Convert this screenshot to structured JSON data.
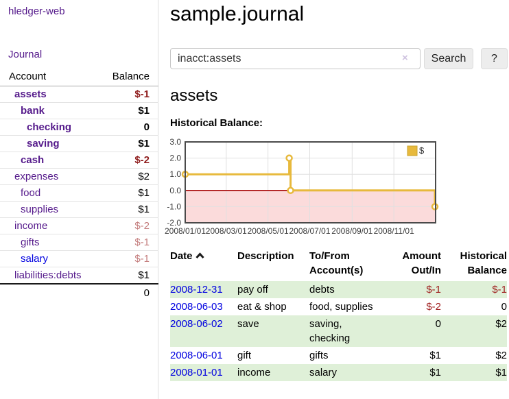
{
  "app": {
    "brand": "hledger-web",
    "nav_journal": "Journal"
  },
  "sidebar": {
    "col_account": "Account",
    "col_balance": "Balance",
    "accounts": [
      {
        "name": "assets",
        "depth": 0,
        "bold": true,
        "color": "purple",
        "balance": "$-1"
      },
      {
        "name": "bank",
        "depth": 1,
        "bold": true,
        "color": "purple",
        "balance": "$1"
      },
      {
        "name": "checking",
        "depth": 2,
        "bold": true,
        "color": "purple",
        "balance": "0"
      },
      {
        "name": "saving",
        "depth": 2,
        "bold": true,
        "color": "purple",
        "balance": "$1"
      },
      {
        "name": "cash",
        "depth": 1,
        "bold": true,
        "color": "purple",
        "balance": "$-2"
      },
      {
        "name": "expenses",
        "depth": 0,
        "bold": false,
        "color": "purple",
        "balance": "$2"
      },
      {
        "name": "food",
        "depth": 1,
        "bold": false,
        "color": "purple",
        "balance": "$1"
      },
      {
        "name": "supplies",
        "depth": 1,
        "bold": false,
        "color": "purple",
        "balance": "$1"
      },
      {
        "name": "income",
        "depth": 0,
        "bold": false,
        "color": "purple",
        "balance": "$-2"
      },
      {
        "name": "gifts",
        "depth": 1,
        "bold": false,
        "color": "purple",
        "balance": "$-1"
      },
      {
        "name": "salary",
        "depth": 1,
        "bold": false,
        "color": "blue",
        "balance": "$-1"
      },
      {
        "name": "liabilities:debts",
        "depth": 0,
        "bold": false,
        "color": "purple",
        "balance": "$1"
      }
    ],
    "total": "0"
  },
  "main": {
    "title": "sample.journal",
    "search": {
      "value": "inacct:assets",
      "clear_icon": "×",
      "search_button": "Search",
      "help_button": "?"
    },
    "account_heading": "assets",
    "chart_label": "Historical Balance:"
  },
  "chart_data": {
    "type": "line",
    "step": true,
    "title": "Historical Balance",
    "x_range": [
      "2008-01-01",
      "2009-01-01"
    ],
    "y_range": [
      -2,
      3
    ],
    "x_ticks": [
      {
        "v": "2008-01-01",
        "label": "2008/01/01"
      },
      {
        "v": "2008-03-01",
        "label": "2008/03/01"
      },
      {
        "v": "2008-05-01",
        "label": "2008/05/01"
      },
      {
        "v": "2008-07-01",
        "label": "2008/07/01"
      },
      {
        "v": "2008-09-01",
        "label": "2008/09/01"
      },
      {
        "v": "2008-11-01",
        "label": "2008/11/01"
      }
    ],
    "y_ticks": [
      {
        "v": 3,
        "label": "3.0"
      },
      {
        "v": 2,
        "label": "2.0"
      },
      {
        "v": 1,
        "label": "1.0"
      },
      {
        "v": 0,
        "label": "0.0"
      },
      {
        "v": -1,
        "label": "-1.0"
      },
      {
        "v": -2,
        "label": "-2.0"
      }
    ],
    "series": [
      {
        "name": "$",
        "color": "#e7b93c",
        "points": [
          {
            "x": "2008-01-01",
            "y": 1
          },
          {
            "x": "2008-06-01",
            "y": 2
          },
          {
            "x": "2008-06-03",
            "y": 0
          },
          {
            "x": "2008-12-31",
            "y": -1
          }
        ]
      }
    ],
    "legend_position": "top-right",
    "grid": true,
    "grid_color": "#e0e0e0",
    "border_color": "#4a4a4a",
    "zero_line_color": "#a40000",
    "negative_region_fill": "#fbdbdb"
  },
  "register": {
    "col_date": "Date",
    "col_description": "Description",
    "col_tofrom": "To/From\nAccount(s)",
    "col_amount": "Amount\nOut/In",
    "col_hist": "Historical\nBalance",
    "rows": [
      {
        "date": "2008-12-31",
        "description": "pay off",
        "accounts": "debts",
        "amount": "$-1",
        "historical": "$-1"
      },
      {
        "date": "2008-06-03",
        "description": "eat & shop",
        "accounts": "food, supplies",
        "amount": "$-2",
        "historical": "0"
      },
      {
        "date": "2008-06-02",
        "description": "save",
        "accounts": "saving,\nchecking",
        "amount": "0",
        "historical": "$2"
      },
      {
        "date": "2008-06-01",
        "description": "gift",
        "accounts": "gifts",
        "amount": "$1",
        "historical": "$2"
      },
      {
        "date": "2008-01-01",
        "description": "income",
        "accounts": "salary",
        "amount": "$1",
        "historical": "$1"
      }
    ]
  }
}
